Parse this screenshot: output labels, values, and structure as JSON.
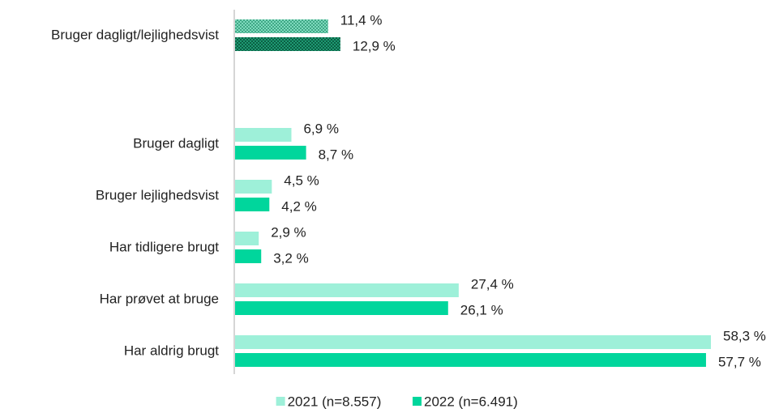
{
  "chart_data": {
    "type": "bar",
    "orientation": "horizontal",
    "categories": [
      "Bruger dagligt/lejlighedsvist",
      "Bruger dagligt",
      "Bruger lejlighedsvist",
      "Har tidligere brugt",
      "Har prøvet at bruge",
      "Har aldrig brugt"
    ],
    "patterned_categories": [
      0
    ],
    "series": [
      {
        "name": "2021 (n=8.557)",
        "color": "#9ef0d9",
        "values": [
          11.4,
          6.9,
          4.5,
          2.9,
          27.4,
          58.3
        ],
        "value_labels": [
          "11,4 %",
          "6,9 %",
          "4,5 %",
          "2,9 %",
          "27,4 %",
          "58,3 %"
        ]
      },
      {
        "name": "2022 (n=6.491)",
        "color": "#00d69c",
        "values": [
          12.9,
          8.7,
          4.2,
          3.2,
          26.1,
          57.7
        ],
        "value_labels": [
          "12,9 %",
          "8,7 %",
          "4,2 %",
          "3,2 %",
          "26,1 %",
          "57,7 %"
        ]
      }
    ],
    "legend": "bottom"
  }
}
